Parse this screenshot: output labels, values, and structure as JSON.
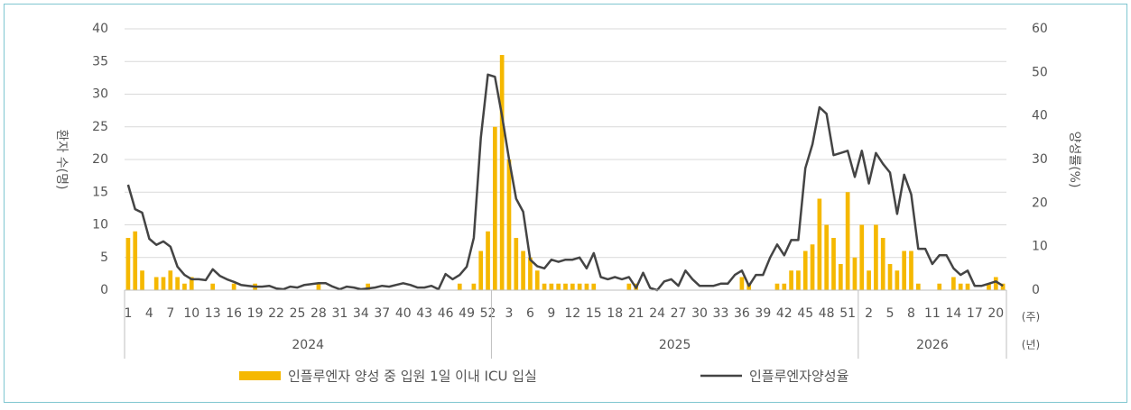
{
  "chart_data": {
    "type": "bar-line",
    "y_label": "환자 수(명)",
    "y2_label": "양성률(%)",
    "x_unit_label": "(주)",
    "group_unit_label": "(년)",
    "categories": [
      "1",
      null,
      null,
      "4",
      null,
      null,
      "7",
      null,
      null,
      "10",
      null,
      null,
      "13",
      null,
      null,
      "16",
      null,
      null,
      "19",
      null,
      null,
      "22",
      null,
      null,
      "25",
      null,
      null,
      "28",
      null,
      null,
      "31",
      null,
      null,
      "34",
      null,
      null,
      "37",
      null,
      null,
      "40",
      null,
      null,
      "43",
      null,
      null,
      "46",
      null,
      null,
      "49",
      null,
      null,
      "52",
      null,
      null,
      "3",
      null,
      null,
      "6",
      null,
      null,
      "9",
      null,
      null,
      "12",
      null,
      null,
      "15",
      null,
      null,
      "18",
      null,
      null,
      "21",
      null,
      null,
      "24",
      null,
      null,
      "27",
      null,
      null,
      "30",
      null,
      null,
      "33",
      null,
      null,
      "36",
      null,
      null,
      "39",
      null,
      null,
      "42",
      null,
      null,
      "45",
      null,
      null,
      "48",
      null,
      null,
      "51",
      null,
      null,
      "2",
      null,
      null,
      "5",
      null,
      null,
      "8",
      null,
      null,
      "11",
      null,
      null,
      "14",
      null,
      null,
      "17",
      null,
      null,
      "20",
      null
    ],
    "groups": [
      {
        "label": "2024",
        "count": 52
      },
      {
        "label": "2025",
        "count": 52
      },
      {
        "label": "2026",
        "count": 21
      }
    ],
    "series": [
      {
        "name": "인플루엔자 양성 중 입원 1일 이내 ICU 입실",
        "kind": "bar",
        "axis": "y",
        "color": "#f5b800",
        "values": [
          8,
          9,
          3,
          0,
          2,
          2,
          3,
          2,
          1,
          2,
          0,
          0,
          1,
          0,
          0,
          1,
          0,
          0,
          1,
          0,
          0,
          0,
          0,
          0,
          0,
          0,
          0,
          1,
          0,
          0,
          0,
          0,
          0,
          0,
          1,
          0,
          0,
          0,
          0,
          0,
          0,
          0,
          0,
          0,
          0,
          0,
          0,
          1,
          0,
          1,
          6,
          9,
          25,
          36,
          20,
          8,
          6,
          5,
          3,
          1,
          1,
          1,
          1,
          1,
          1,
          1,
          1,
          0,
          0,
          0,
          0,
          1,
          1,
          0,
          0,
          0,
          0,
          0,
          0,
          0,
          0,
          0,
          0,
          0,
          0,
          0,
          0,
          2,
          1,
          0,
          0,
          0,
          1,
          1,
          3,
          3,
          6,
          7,
          14,
          10,
          8,
          4,
          15,
          5,
          10,
          3,
          10,
          8,
          4,
          3,
          6,
          6,
          1,
          0,
          0,
          1,
          0,
          2,
          1,
          1,
          0,
          0,
          1,
          2,
          1
        ]
      },
      {
        "name": "인플루엔자양성율",
        "kind": "line",
        "axis": "y2",
        "color": "#444444",
        "values": [
          24.2,
          18.6,
          17.8,
          11.8,
          10.4,
          11.2,
          10,
          5.4,
          3.5,
          2.5,
          2.5,
          2.3,
          4.8,
          3.3,
          2.5,
          1.9,
          1.2,
          1,
          0.8,
          0.8,
          1,
          0.4,
          0.2,
          0.8,
          0.6,
          1.2,
          1.4,
          1.6,
          1.6,
          0.8,
          0.2,
          0.8,
          0.6,
          0.2,
          0.4,
          0.6,
          1,
          0.8,
          1.2,
          1.6,
          1.2,
          0.6,
          0.6,
          1,
          0.2,
          3.7,
          2.5,
          3.5,
          5.4,
          12,
          35,
          49.5,
          49,
          40,
          30,
          21,
          18,
          7,
          5.5,
          5,
          7,
          6.5,
          7,
          7,
          7.5,
          5,
          8.5,
          3,
          2.5,
          3,
          2.5,
          3,
          0.5,
          4,
          0.5,
          0,
          2,
          2.5,
          1,
          4.5,
          2.5,
          1,
          1,
          1,
          1.5,
          1.5,
          3.5,
          4.5,
          1,
          3.5,
          3.5,
          7.5,
          10.5,
          8,
          11.5,
          11.5,
          28,
          33.5,
          42,
          40.5,
          31,
          31.5,
          32,
          26,
          32,
          24.5,
          31.5,
          29,
          27,
          17.5,
          26.5,
          22,
          9.5,
          9.5,
          6,
          8,
          8,
          5,
          3.5,
          4.5,
          1,
          1,
          1.5,
          2,
          1
        ]
      }
    ],
    "ylim": [
      0,
      40
    ],
    "yticks": [
      0,
      5,
      10,
      15,
      20,
      25,
      30,
      35,
      40
    ],
    "y2lim": [
      0,
      60
    ],
    "y2ticks": [
      0,
      10,
      20,
      30,
      40,
      50,
      60
    ],
    "grid": true
  }
}
